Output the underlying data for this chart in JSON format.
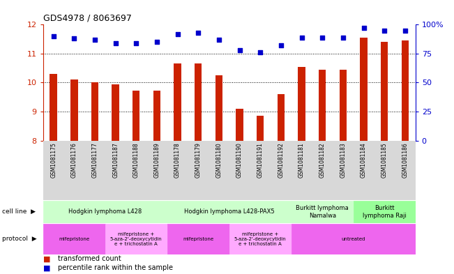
{
  "title": "GDS4978 / 8063697",
  "samples": [
    "GSM1081175",
    "GSM1081176",
    "GSM1081177",
    "GSM1081187",
    "GSM1081188",
    "GSM1081189",
    "GSM1081178",
    "GSM1081179",
    "GSM1081180",
    "GSM1081190",
    "GSM1081191",
    "GSM1081192",
    "GSM1081181",
    "GSM1081182",
    "GSM1081183",
    "GSM1081184",
    "GSM1081185",
    "GSM1081186"
  ],
  "bar_values": [
    10.3,
    10.1,
    10.0,
    9.95,
    9.72,
    9.72,
    10.65,
    10.65,
    10.25,
    9.1,
    8.85,
    9.6,
    10.55,
    10.45,
    10.45,
    11.55,
    11.4,
    11.45
  ],
  "dot_values": [
    90,
    88,
    87,
    84,
    84,
    85,
    92,
    93,
    87,
    78,
    76,
    82,
    89,
    89,
    89,
    97,
    95,
    95
  ],
  "ylim_left": [
    8,
    12
  ],
  "ylim_right": [
    0,
    100
  ],
  "yticks_left": [
    8,
    9,
    10,
    11,
    12
  ],
  "yticks_right": [
    0,
    25,
    50,
    75,
    100
  ],
  "bar_color": "#cc2200",
  "dot_color": "#0000cc",
  "cell_line_groups": [
    {
      "label": "Hodgkin lymphoma L428",
      "start": 0,
      "end": 5,
      "color": "#ccffcc"
    },
    {
      "label": "Hodgkin lymphoma L428-PAX5",
      "start": 6,
      "end": 11,
      "color": "#ccffcc"
    },
    {
      "label": "Burkitt lymphoma\nNamalwa",
      "start": 12,
      "end": 14,
      "color": "#ccffcc"
    },
    {
      "label": "Burkitt\nlymphoma Raji",
      "start": 15,
      "end": 17,
      "color": "#99ff99"
    }
  ],
  "protocol_groups": [
    {
      "label": "mifepristone",
      "start": 0,
      "end": 2,
      "color": "#ee66ee"
    },
    {
      "label": "mifepristone +\n5-aza-2'-deoxycytidin\ne + trichostatin A",
      "start": 3,
      "end": 5,
      "color": "#ffaaff"
    },
    {
      "label": "mifepristone",
      "start": 6,
      "end": 8,
      "color": "#ee66ee"
    },
    {
      "label": "mifepristone +\n5-aza-2'-deoxycytidin\ne + trichostatin A",
      "start": 9,
      "end": 11,
      "color": "#ffaaff"
    },
    {
      "label": "untreated",
      "start": 12,
      "end": 17,
      "color": "#ee66ee"
    }
  ],
  "bar_bottom": 8,
  "bar_width": 0.35,
  "sample_bg_color": "#d8d8d8",
  "grid_yticks": [
    9,
    10,
    11
  ]
}
